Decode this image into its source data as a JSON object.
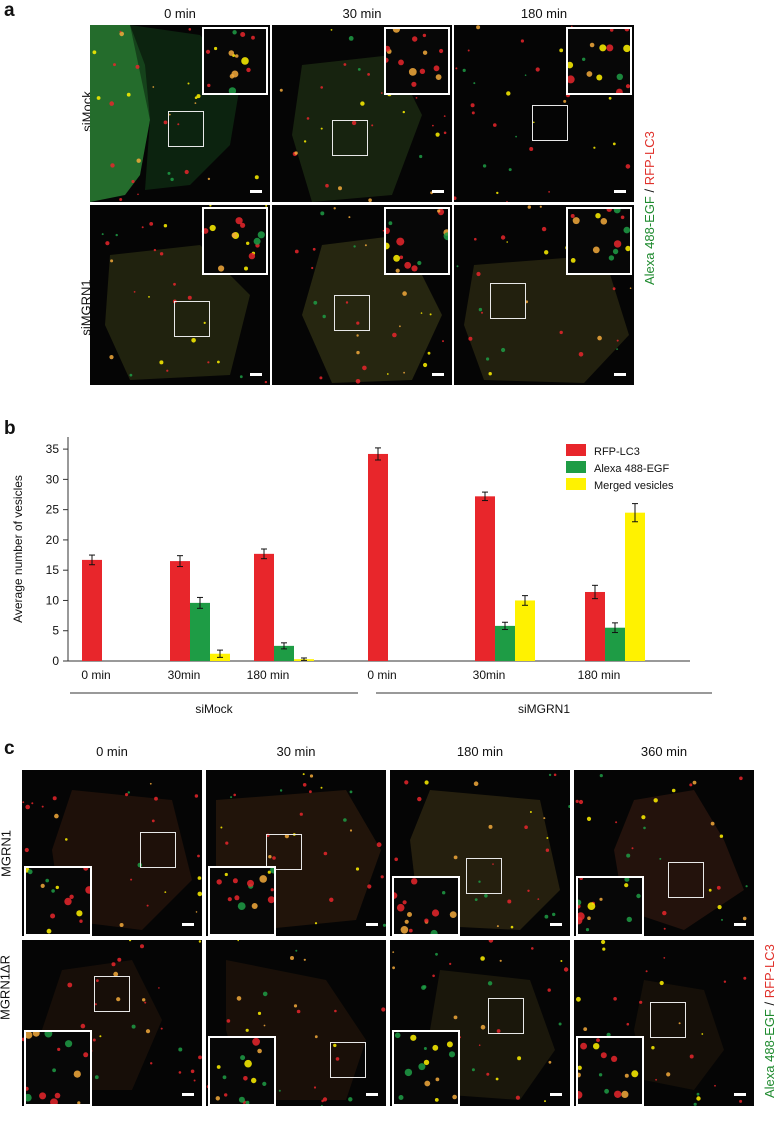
{
  "panel_a": {
    "letter": "a",
    "columns": [
      "0 min",
      "30 min",
      "180 min"
    ],
    "rows": [
      "siMock",
      "siMGRN1"
    ],
    "side_label": {
      "part1": "Alexa 488-EGF",
      "sep": " / ",
      "part2": "RFP-LC3"
    },
    "scale": "5 µm"
  },
  "panel_b": {
    "letter": "b",
    "group_labels": [
      "siMock",
      "siMGRN1"
    ]
  },
  "panel_c": {
    "letter": "c",
    "columns": [
      "0 min",
      "30 min",
      "180 min",
      "360 min"
    ],
    "rows": [
      "MGRN1",
      "MGRN1ΔR"
    ],
    "side_label": {
      "part1": "Alexa 488-EGF",
      "sep": " / ",
      "part2": "RFP-LC3"
    },
    "scale": "5 µm"
  },
  "colors": {
    "rfp": "#e8262b",
    "alexa": "#1e9c45",
    "merged": "#fff200"
  },
  "chart_data": {
    "type": "bar",
    "ylabel": "Average number of vesicles",
    "ylim": [
      0,
      37
    ],
    "yticks": [
      0,
      5,
      10,
      15,
      20,
      25,
      30,
      35
    ],
    "categories": [
      "0 min",
      "30min",
      "180 min",
      "0 min",
      "30min",
      "180 min"
    ],
    "groups": [
      {
        "name": "siMock",
        "categories": [
          0,
          1,
          2
        ]
      },
      {
        "name": "siMGRN1",
        "categories": [
          3,
          4,
          5
        ]
      }
    ],
    "legend": "top-right",
    "series": [
      {
        "name": "RFP-LC3",
        "color": "#e8262b",
        "values": [
          16.7,
          16.5,
          17.7,
          34.2,
          27.2,
          11.4
        ],
        "errors": [
          0.8,
          0.9,
          0.8,
          1.0,
          0.7,
          1.1
        ]
      },
      {
        "name": "Alexa 488-EGF",
        "color": "#1e9c45",
        "values": [
          0,
          9.6,
          2.5,
          0,
          5.8,
          5.5
        ],
        "errors": [
          0,
          0.9,
          0.5,
          0,
          0.6,
          0.8
        ]
      },
      {
        "name": "Merged vesicles",
        "color": "#fff200",
        "values": [
          0,
          1.2,
          0.3,
          0,
          10.0,
          24.5
        ],
        "errors": [
          0,
          0.6,
          0.2,
          0,
          0.8,
          1.5
        ]
      }
    ]
  }
}
